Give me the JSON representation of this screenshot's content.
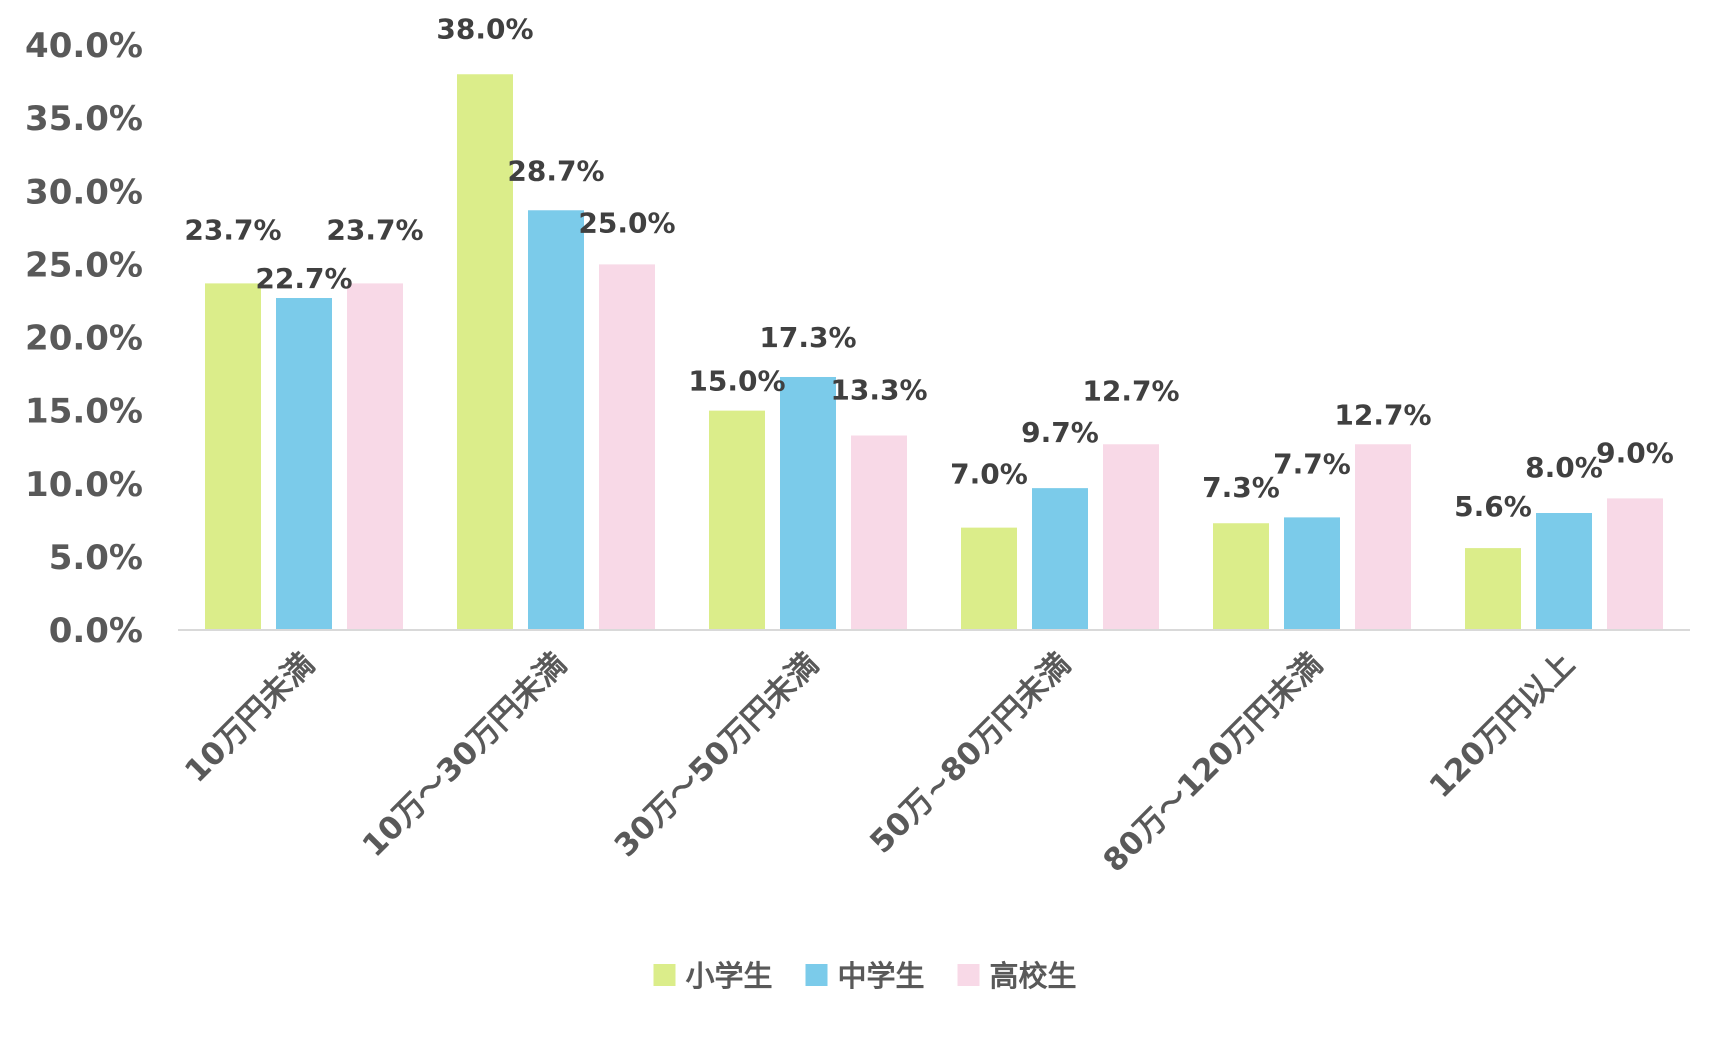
{
  "chart_data": {
    "type": "bar",
    "categories": [
      "10万円未満",
      "10万～30万円未満",
      "30万～50万円未満",
      "50万~80万円未満",
      "80万～120万円未満",
      "120万円以上"
    ],
    "series": [
      {
        "name": "小学生",
        "color": "#dbed8a",
        "values": [
          23.7,
          38.0,
          15.0,
          7.0,
          7.3,
          5.6
        ],
        "labels": [
          "23.7%",
          "38.0%",
          "15.0%",
          "7.0%",
          "7.3%",
          "5.6%"
        ]
      },
      {
        "name": "中学生",
        "color": "#7bcbea",
        "values": [
          22.7,
          28.7,
          17.3,
          9.7,
          7.7,
          8.0
        ],
        "labels": [
          "22.7%",
          "28.7%",
          "17.3%",
          "9.7%",
          "7.7%",
          "8.0%"
        ]
      },
      {
        "name": "高校生",
        "color": "#f8d9e7",
        "values": [
          23.7,
          25.0,
          13.3,
          12.7,
          12.7,
          9.0
        ],
        "labels": [
          "23.7%",
          "25.0%",
          "13.3%",
          "12.7%",
          "12.7%",
          "9.0%"
        ]
      }
    ],
    "yticks": [
      "0.0%",
      "5.0%",
      "10.0%",
      "15.0%",
      "20.0%",
      "25.0%",
      "30.0%",
      "35.0%",
      "40.0%"
    ],
    "ylim": [
      0,
      40
    ],
    "grid": false,
    "legend_position": "bottom",
    "axis_color": "#d9d9d9",
    "title": "",
    "xlabel": "",
    "ylabel": ""
  }
}
